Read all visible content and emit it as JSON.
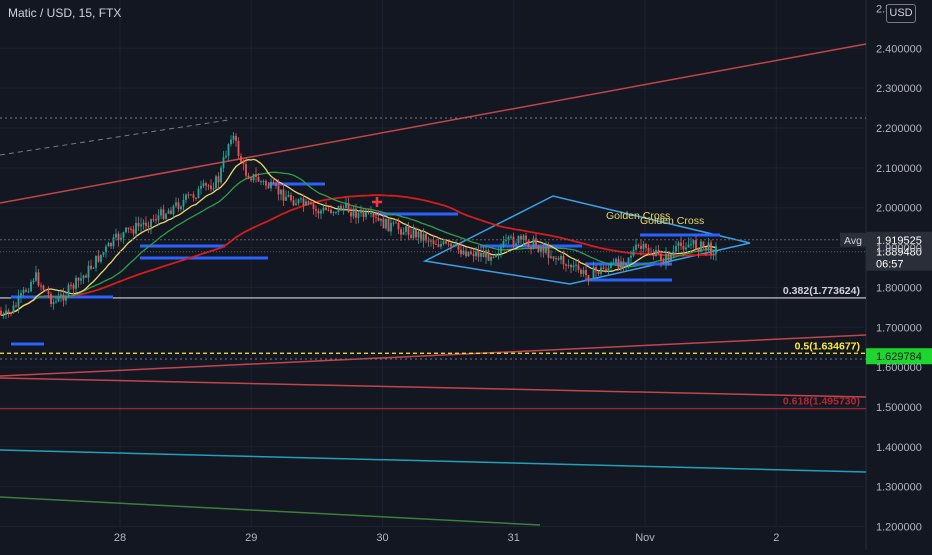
{
  "header": {
    "symbol": "Matic / USD, 15, FTX",
    "currency": "USD"
  },
  "colors": {
    "background": "#131722",
    "candle_up": "#26a69a",
    "candle_down": "#ef5350",
    "trendline": "#c2454a",
    "diamond": "#3ba0e8",
    "ma_yellow": "#e8d96b",
    "ma_red": "#d61d1d",
    "ma_green": "#2e9e48",
    "fib_white": "#d1d4dc",
    "fib_yellow": "#ffeb3b",
    "fib_red": "#b22833",
    "teal_line": "#21a1b5",
    "green_line": "#3c7f3a",
    "current_price": "#1dd62e"
  },
  "chart_data": {
    "type": "candlestick",
    "title": "Matic / USD, 15, FTX",
    "x_ticks": [
      "28",
      "29",
      "30",
      "31",
      "Nov",
      "2"
    ],
    "y_ticks": [
      "2.400000",
      "2.300000",
      "2.200000",
      "2.100000",
      "2.000000",
      "1.900000",
      "1.800000",
      "1.700000",
      "1.600000",
      "1.500000",
      "1.400000",
      "1.300000",
      "1.200000"
    ],
    "y_top_partial": "2.5",
    "ylim": [
      1.165,
      2.5
    ],
    "price_path": [
      {
        "day": 27.0,
        "price": 1.87
      },
      {
        "day": 27.1,
        "price": 1.72
      },
      {
        "day": 27.2,
        "price": 1.75
      },
      {
        "day": 27.35,
        "price": 1.83
      },
      {
        "day": 27.5,
        "price": 1.76
      },
      {
        "day": 27.7,
        "price": 1.82
      },
      {
        "day": 27.85,
        "price": 1.88
      },
      {
        "day": 28.0,
        "price": 1.93
      },
      {
        "day": 28.3,
        "price": 1.98
      },
      {
        "day": 28.55,
        "price": 2.03
      },
      {
        "day": 28.75,
        "price": 2.07
      },
      {
        "day": 28.85,
        "price": 2.19
      },
      {
        "day": 28.95,
        "price": 2.09
      },
      {
        "day": 29.2,
        "price": 2.04
      },
      {
        "day": 29.5,
        "price": 1.99
      },
      {
        "day": 29.7,
        "price": 2.0
      },
      {
        "day": 29.85,
        "price": 1.98
      },
      {
        "day": 30.0,
        "price": 1.96
      },
      {
        "day": 30.3,
        "price": 1.93
      },
      {
        "day": 30.5,
        "price": 1.9
      },
      {
        "day": 30.8,
        "price": 1.88
      },
      {
        "day": 31.0,
        "price": 1.92
      },
      {
        "day": 31.15,
        "price": 1.91
      },
      {
        "day": 31.3,
        "price": 1.88
      },
      {
        "day": 31.55,
        "price": 1.83
      },
      {
        "day": 31.8,
        "price": 1.86
      },
      {
        "day": 31.95,
        "price": 1.9
      },
      {
        "day": 32.15,
        "price": 1.87
      },
      {
        "day": 32.3,
        "price": 1.91
      },
      {
        "day": 32.55,
        "price": 1.895
      }
    ],
    "horizontal_levels": [
      {
        "label": "Avg",
        "value": "1.919525",
        "price": 1.9195
      },
      {
        "label": "",
        "value": "1.889480",
        "countdown": "06:57",
        "price": 1.8895
      },
      {
        "label": "",
        "value": "1.629784",
        "price": 1.6298
      }
    ],
    "fib_levels": [
      {
        "label": "0.382(1.773624)",
        "price": 1.7736
      },
      {
        "label": "0.5(1.634677)",
        "price": 1.6347
      },
      {
        "label": "0.618(1.495730)",
        "price": 1.4957
      }
    ],
    "annotations": [
      "Golden Cross",
      "Golden Cross"
    ],
    "grid": true
  }
}
